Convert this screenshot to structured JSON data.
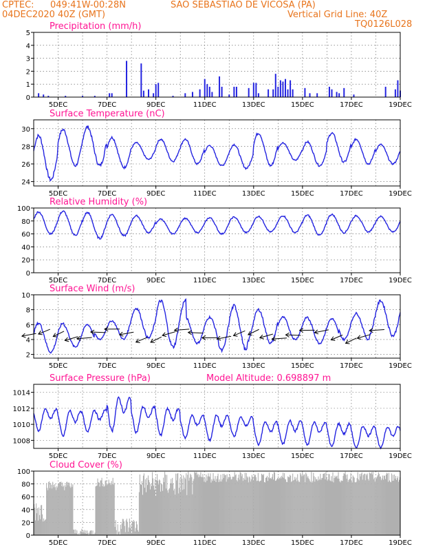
{
  "header": {
    "source": "CPTEC:",
    "coords": "049:41W-00:28N",
    "location": "SAO SEBASTIAO DE VICOSA (PA)",
    "date": "04DEC2020 40Z (GMT)",
    "grid_note": "Vertical Grid Line: 40Z",
    "code": "TQ0126L028"
  },
  "colors": {
    "header": "#e8741c",
    "title": "#ff1493",
    "series": "#2323e0",
    "bars": "#2323e0",
    "cloud": "#b0b0b0",
    "wind": "#000000"
  },
  "x_ticks": [
    "5DEC",
    "7DEC",
    "9DEC",
    "11DEC",
    "13DEC",
    "15DEC",
    "17DEC",
    "19DEC"
  ],
  "chart_data": [
    {
      "type": "bar",
      "title": "Precipitation (mm/h)",
      "yticks": [
        "0",
        "1",
        "2",
        "3",
        "4",
        "5"
      ],
      "ylim": [
        0,
        5
      ],
      "bars": [
        [
          4.2,
          0.3
        ],
        [
          4.4,
          0.2
        ],
        [
          4.6,
          0.1
        ],
        [
          5.3,
          0.1
        ],
        [
          6.0,
          0.1
        ],
        [
          6.5,
          0.1
        ],
        [
          7.1,
          0.3
        ],
        [
          7.2,
          0.3
        ],
        [
          7.8,
          2.8
        ],
        [
          8.4,
          2.6
        ],
        [
          8.5,
          0.5
        ],
        [
          8.7,
          0.6
        ],
        [
          8.9,
          0.3
        ],
        [
          9.0,
          1.0
        ],
        [
          9.1,
          1.1
        ],
        [
          9.7,
          0.1
        ],
        [
          10.2,
          0.3
        ],
        [
          10.5,
          0.4
        ],
        [
          10.8,
          0.6
        ],
        [
          11.0,
          1.4
        ],
        [
          11.1,
          1.0
        ],
        [
          11.2,
          0.8
        ],
        [
          11.3,
          0.4
        ],
        [
          11.6,
          1.6
        ],
        [
          11.7,
          0.8
        ],
        [
          12.0,
          0.2
        ],
        [
          12.2,
          0.8
        ],
        [
          12.3,
          0.8
        ],
        [
          12.8,
          0.7
        ],
        [
          13.0,
          1.1
        ],
        [
          13.1,
          1.1
        ],
        [
          13.2,
          0.3
        ],
        [
          13.6,
          0.6
        ],
        [
          13.8,
          0.6
        ],
        [
          13.9,
          1.8
        ],
        [
          14.0,
          0.8
        ],
        [
          14.1,
          1.3
        ],
        [
          14.2,
          1.2
        ],
        [
          14.3,
          1.4
        ],
        [
          14.4,
          0.6
        ],
        [
          14.5,
          1.3
        ],
        [
          14.6,
          0.6
        ],
        [
          15.1,
          0.7
        ],
        [
          15.3,
          0.3
        ],
        [
          15.6,
          0.3
        ],
        [
          16.1,
          0.8
        ],
        [
          16.2,
          0.6
        ],
        [
          16.4,
          0.4
        ],
        [
          16.5,
          0.3
        ],
        [
          16.7,
          0.7
        ],
        [
          17.1,
          0.2
        ],
        [
          18.4,
          0.8
        ],
        [
          18.8,
          0.6
        ],
        [
          18.9,
          1.3
        ],
        [
          19.0,
          0.5
        ]
      ]
    },
    {
      "type": "line",
      "title": "Surface Temperature (nC)",
      "yticks": [
        "24",
        "26",
        "28",
        "30"
      ],
      "ylim": [
        23.5,
        31
      ],
      "daily_max": [
        29.2,
        29.9,
        30.2,
        29.0,
        28.4,
        28.8,
        28.8,
        28.1,
        28.2,
        29.5,
        28.4,
        28.5,
        29.5,
        28.8,
        28.2
      ],
      "daily_min": [
        24.2,
        25.8,
        25.8,
        25.6,
        26.5,
        26.3,
        26.0,
        25.8,
        25.5,
        25.8,
        26.4,
        25.8,
        26.2,
        26.0,
        26.0
      ]
    },
    {
      "type": "line",
      "title": "Relative Humidity (%)",
      "yticks": [
        "0",
        "20",
        "40",
        "60",
        "80",
        "100"
      ],
      "ylim": [
        0,
        100
      ],
      "daily_max": [
        94,
        95,
        93,
        90,
        88,
        83,
        84,
        85,
        86,
        87,
        88,
        89,
        90,
        88,
        87
      ],
      "daily_min": [
        60,
        58,
        53,
        57,
        62,
        60,
        62,
        60,
        62,
        63,
        62,
        58,
        62,
        63,
        63
      ]
    },
    {
      "type": "line",
      "title": "Surface Wind (m/s)",
      "yticks": [
        "2",
        "4",
        "6",
        "8",
        "10"
      ],
      "ylim": [
        1.5,
        10
      ],
      "daily_max": [
        6.2,
        6.0,
        6.5,
        8.2,
        9.2,
        7.0,
        8.5,
        8.0,
        7.0,
        6.8,
        7.5,
        9.2
      ],
      "daily_min": [
        2.3,
        3.0,
        4.0,
        4.2,
        3.0,
        3.5,
        2.5,
        3.5,
        4.0,
        3.5,
        4.0,
        4.5
      ]
    },
    {
      "type": "line",
      "title": "Surface Pressure (hPa)",
      "subtitle": "Model Altitude: 0.698897 m",
      "yticks": [
        "1008",
        "1010",
        "1012",
        "1014"
      ],
      "ylim": [
        1007,
        1015
      ],
      "daily_max": [
        1012.6,
        1012.5,
        1012.5,
        1014.3,
        1013.0,
        1012.8,
        1011.8,
        1011.9,
        1011.5,
        1011.0,
        1011.2,
        1011.0,
        1010.8,
        1010.5,
        1010.4
      ],
      "daily_min": [
        1009.2,
        1008.5,
        1009.0,
        1009.2,
        1009.0,
        1008.6,
        1008.3,
        1008.0,
        1008.5,
        1007.5,
        1007.5,
        1007.4,
        1007.2,
        1007.0,
        1007.0
      ]
    },
    {
      "type": "area",
      "title": "Cloud Cover (%)",
      "yticks": [
        "0",
        "20",
        "40",
        "60",
        "80",
        "100"
      ],
      "ylim": [
        0,
        100
      ]
    }
  ]
}
